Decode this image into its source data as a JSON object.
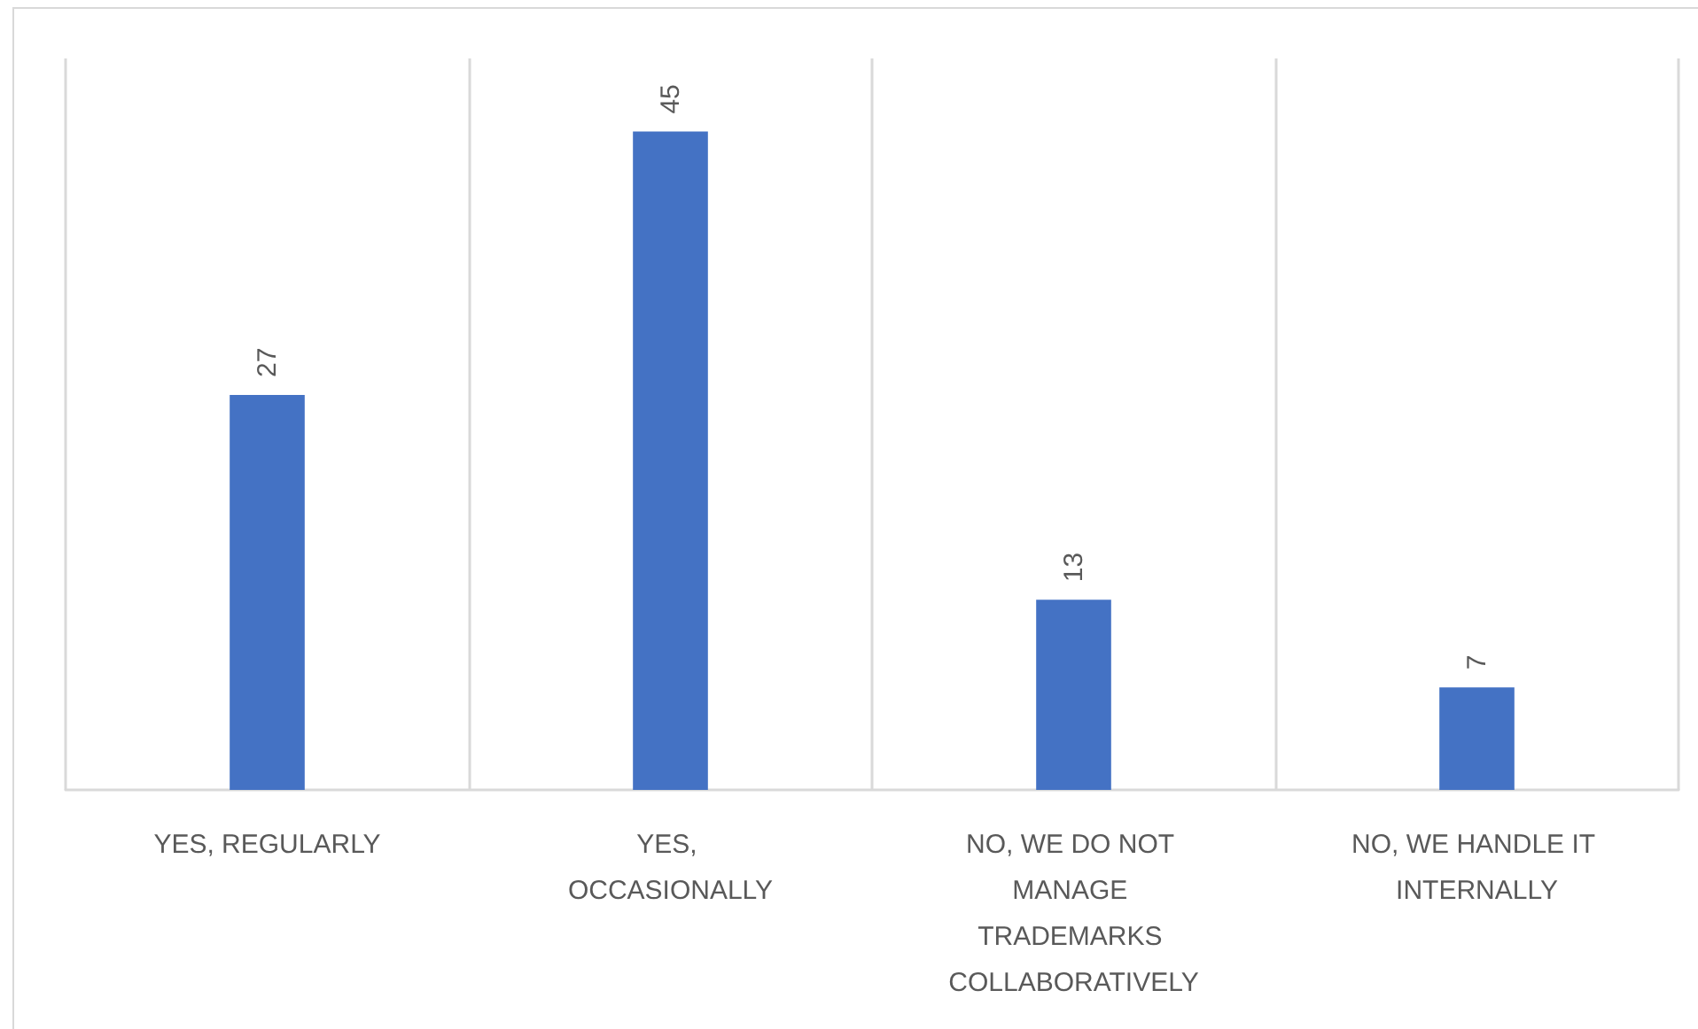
{
  "chart_data": {
    "type": "bar",
    "categories": [
      "YES, REGULARLY",
      "YES, OCCASIONALLY",
      "NO, WE DO NOT MANAGE TRADEMARKS COLLABORATIVELY",
      "NO, WE HANDLE IT INTERNALLY"
    ],
    "values": [
      27,
      45,
      13,
      7
    ],
    "color": "#4472c4",
    "data_labels": true,
    "grid": "x",
    "tick_labels": "x"
  }
}
